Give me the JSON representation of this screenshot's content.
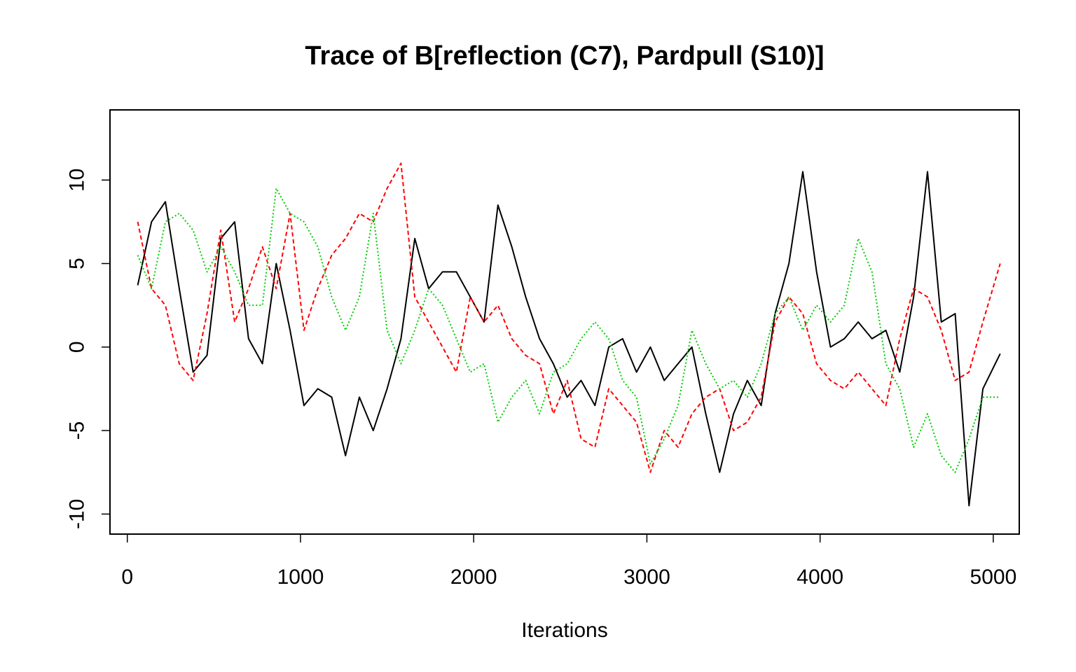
{
  "chart_data": {
    "type": "line",
    "title": "Trace of B[reflection (C7), Pardpull (S10)]",
    "xlabel": "Iterations",
    "ylabel": "",
    "xlim": [
      -100,
      5150
    ],
    "ylim": [
      -11.2,
      14.2
    ],
    "x_ticks": [
      0,
      1000,
      2000,
      3000,
      4000,
      5000
    ],
    "x_tick_labels": [
      "0",
      "1000",
      "2000",
      "3000",
      "4000",
      "5000"
    ],
    "y_ticks": [
      -10,
      -5,
      0,
      5,
      10
    ],
    "y_tick_labels": [
      "-10",
      "-5",
      "0",
      "5",
      "10"
    ],
    "grid": false,
    "legend": "none",
    "x": [
      60,
      140,
      220,
      300,
      380,
      460,
      540,
      620,
      700,
      780,
      860,
      940,
      1020,
      1100,
      1180,
      1260,
      1340,
      1420,
      1500,
      1580,
      1660,
      1740,
      1820,
      1900,
      1980,
      2060,
      2140,
      2220,
      2300,
      2380,
      2460,
      2540,
      2620,
      2700,
      2780,
      2860,
      2940,
      3020,
      3100,
      3180,
      3260,
      3340,
      3420,
      3500,
      3580,
      3660,
      3740,
      3820,
      3900,
      3980,
      4060,
      4140,
      4220,
      4300,
      4380,
      4460,
      4540,
      4620,
      4700,
      4780,
      4860,
      4940,
      5040
    ],
    "series": [
      {
        "color": "#000000",
        "dash": "solid",
        "values": [
          3.7,
          7.5,
          8.7,
          3.5,
          -1.5,
          -0.5,
          6.5,
          7.5,
          0.5,
          -1.0,
          5.0,
          1.0,
          -3.5,
          -2.5,
          -3.0,
          -6.5,
          -3.0,
          -5.0,
          -2.5,
          0.5,
          6.5,
          3.5,
          4.5,
          4.5,
          3.0,
          1.5,
          8.5,
          6.0,
          3.0,
          0.5,
          -1.0,
          -3.0,
          -2.0,
          -3.5,
          0.0,
          0.5,
          -1.5,
          0.0,
          -2.0,
          -1.0,
          0.0,
          -4.0,
          -7.5,
          -4.0,
          -2.0,
          -3.5,
          2.0,
          5.0,
          10.5,
          4.5,
          0.0,
          0.5,
          1.5,
          0.5,
          1.0,
          -1.5,
          3.0,
          10.5,
          1.5,
          2.0,
          -9.5,
          -2.5,
          -0.4
        ]
      },
      {
        "color": "#ff0000",
        "dash": "6,4",
        "values": [
          7.5,
          3.5,
          2.5,
          -1.0,
          -2.0,
          2.0,
          7.0,
          1.5,
          3.5,
          6.0,
          3.5,
          8.0,
          1.0,
          3.5,
          5.5,
          6.5,
          8.0,
          7.5,
          9.5,
          11.0,
          3.0,
          1.5,
          0.0,
          -1.5,
          3.0,
          1.5,
          2.5,
          0.5,
          -0.5,
          -1.0,
          -4.0,
          -2.0,
          -5.5,
          -6.0,
          -2.5,
          -3.5,
          -4.5,
          -7.5,
          -5.0,
          -6.0,
          -4.0,
          -3.0,
          -2.5,
          -5.0,
          -4.5,
          -3.0,
          1.5,
          3.0,
          2.0,
          -1.0,
          -2.0,
          -2.5,
          -1.5,
          -2.5,
          -3.5,
          0.5,
          3.5,
          3.0,
          1.0,
          -2.0,
          -1.5,
          1.5,
          5.0
        ]
      },
      {
        "color": "#00cd00",
        "dash": "2,3",
        "values": [
          5.5,
          3.5,
          7.5,
          8.0,
          7.0,
          4.5,
          6.0,
          4.5,
          2.5,
          2.5,
          9.5,
          8.0,
          7.5,
          6.0,
          3.0,
          1.0,
          3.0,
          8.0,
          1.0,
          -1.0,
          1.0,
          3.5,
          2.5,
          0.5,
          -1.5,
          -1.0,
          -4.5,
          -3.0,
          -2.0,
          -4.0,
          -1.5,
          -1.0,
          0.5,
          1.5,
          0.5,
          -2.0,
          -3.0,
          -7.0,
          -5.5,
          -3.5,
          1.0,
          -1.0,
          -2.5,
          -2.0,
          -3.0,
          -1.0,
          2.0,
          3.0,
          1.0,
          2.5,
          1.5,
          2.5,
          6.5,
          4.5,
          -1.0,
          -2.5,
          -6.0,
          -4.0,
          -6.5,
          -7.5,
          -5.5,
          -3.0,
          -3.0
        ]
      }
    ]
  }
}
